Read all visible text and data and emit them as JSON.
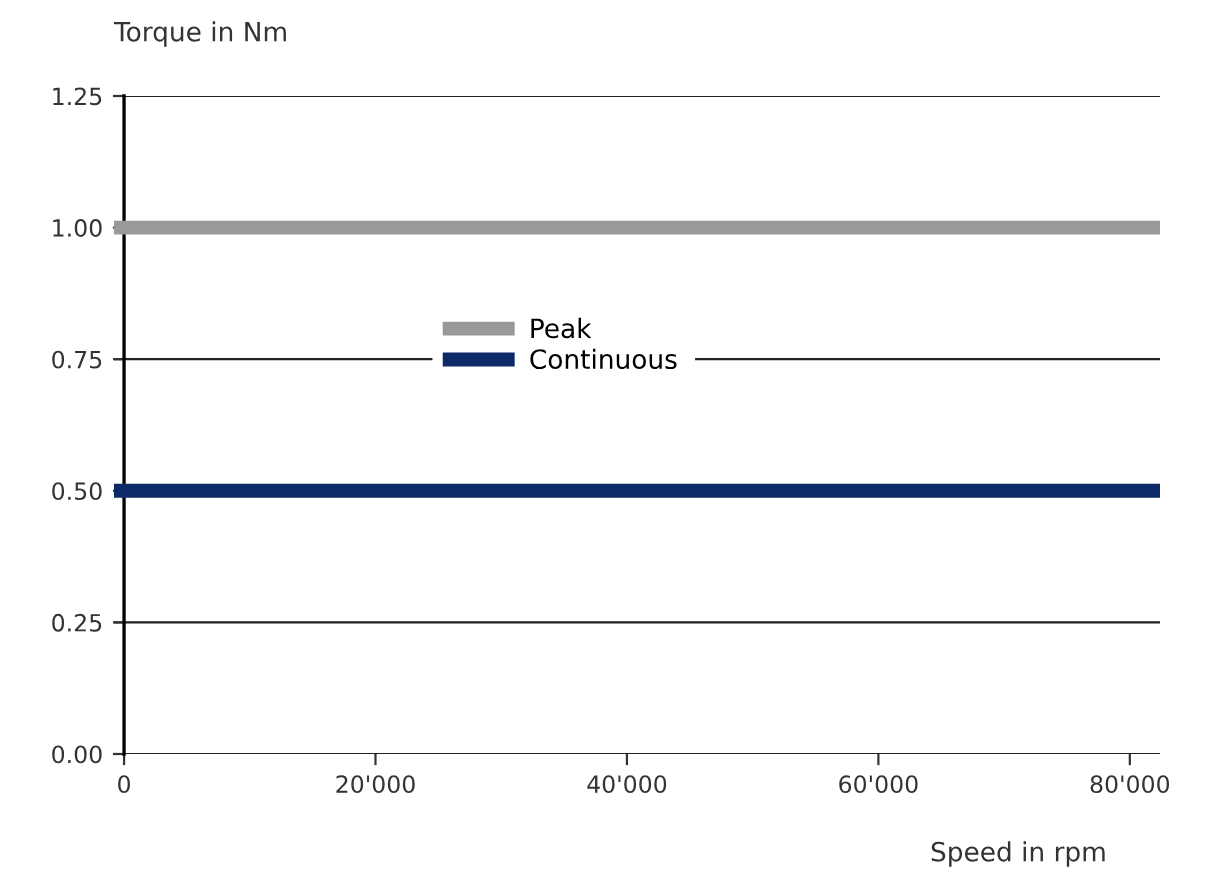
{
  "chart_data": {
    "type": "line",
    "xlabel": "Speed in rpm",
    "ylabel": "Torque in Nm",
    "x": [
      -800,
      82400
    ],
    "series": [
      {
        "name": "Peak",
        "color": "#999999",
        "values": [
          1.0,
          1.0
        ]
      },
      {
        "name": "Continuous",
        "color": "#0b2a66",
        "values": [
          0.5,
          0.5
        ]
      }
    ],
    "xlim": [
      -800,
      82400
    ],
    "xticks": [
      {
        "value": 0,
        "label": "0"
      },
      {
        "value": 20000,
        "label": "20'000"
      },
      {
        "value": 40000,
        "label": "40'000"
      },
      {
        "value": 60000,
        "label": "60'000"
      },
      {
        "value": 80000,
        "label": "80'000"
      }
    ],
    "ylim": [
      0,
      1.25
    ],
    "yticks": [
      {
        "value": 0,
        "label": "0.00"
      },
      {
        "value": 0.25,
        "label": "0.25"
      },
      {
        "value": 0.5,
        "label": "0.50"
      },
      {
        "value": 0.75,
        "label": "0.75"
      },
      {
        "value": 1.0,
        "label": "1.00"
      },
      {
        "value": 1.25,
        "label": "1.25"
      }
    ],
    "grid": "y",
    "legend": "center",
    "marker": "none",
    "line_style": "solid"
  }
}
